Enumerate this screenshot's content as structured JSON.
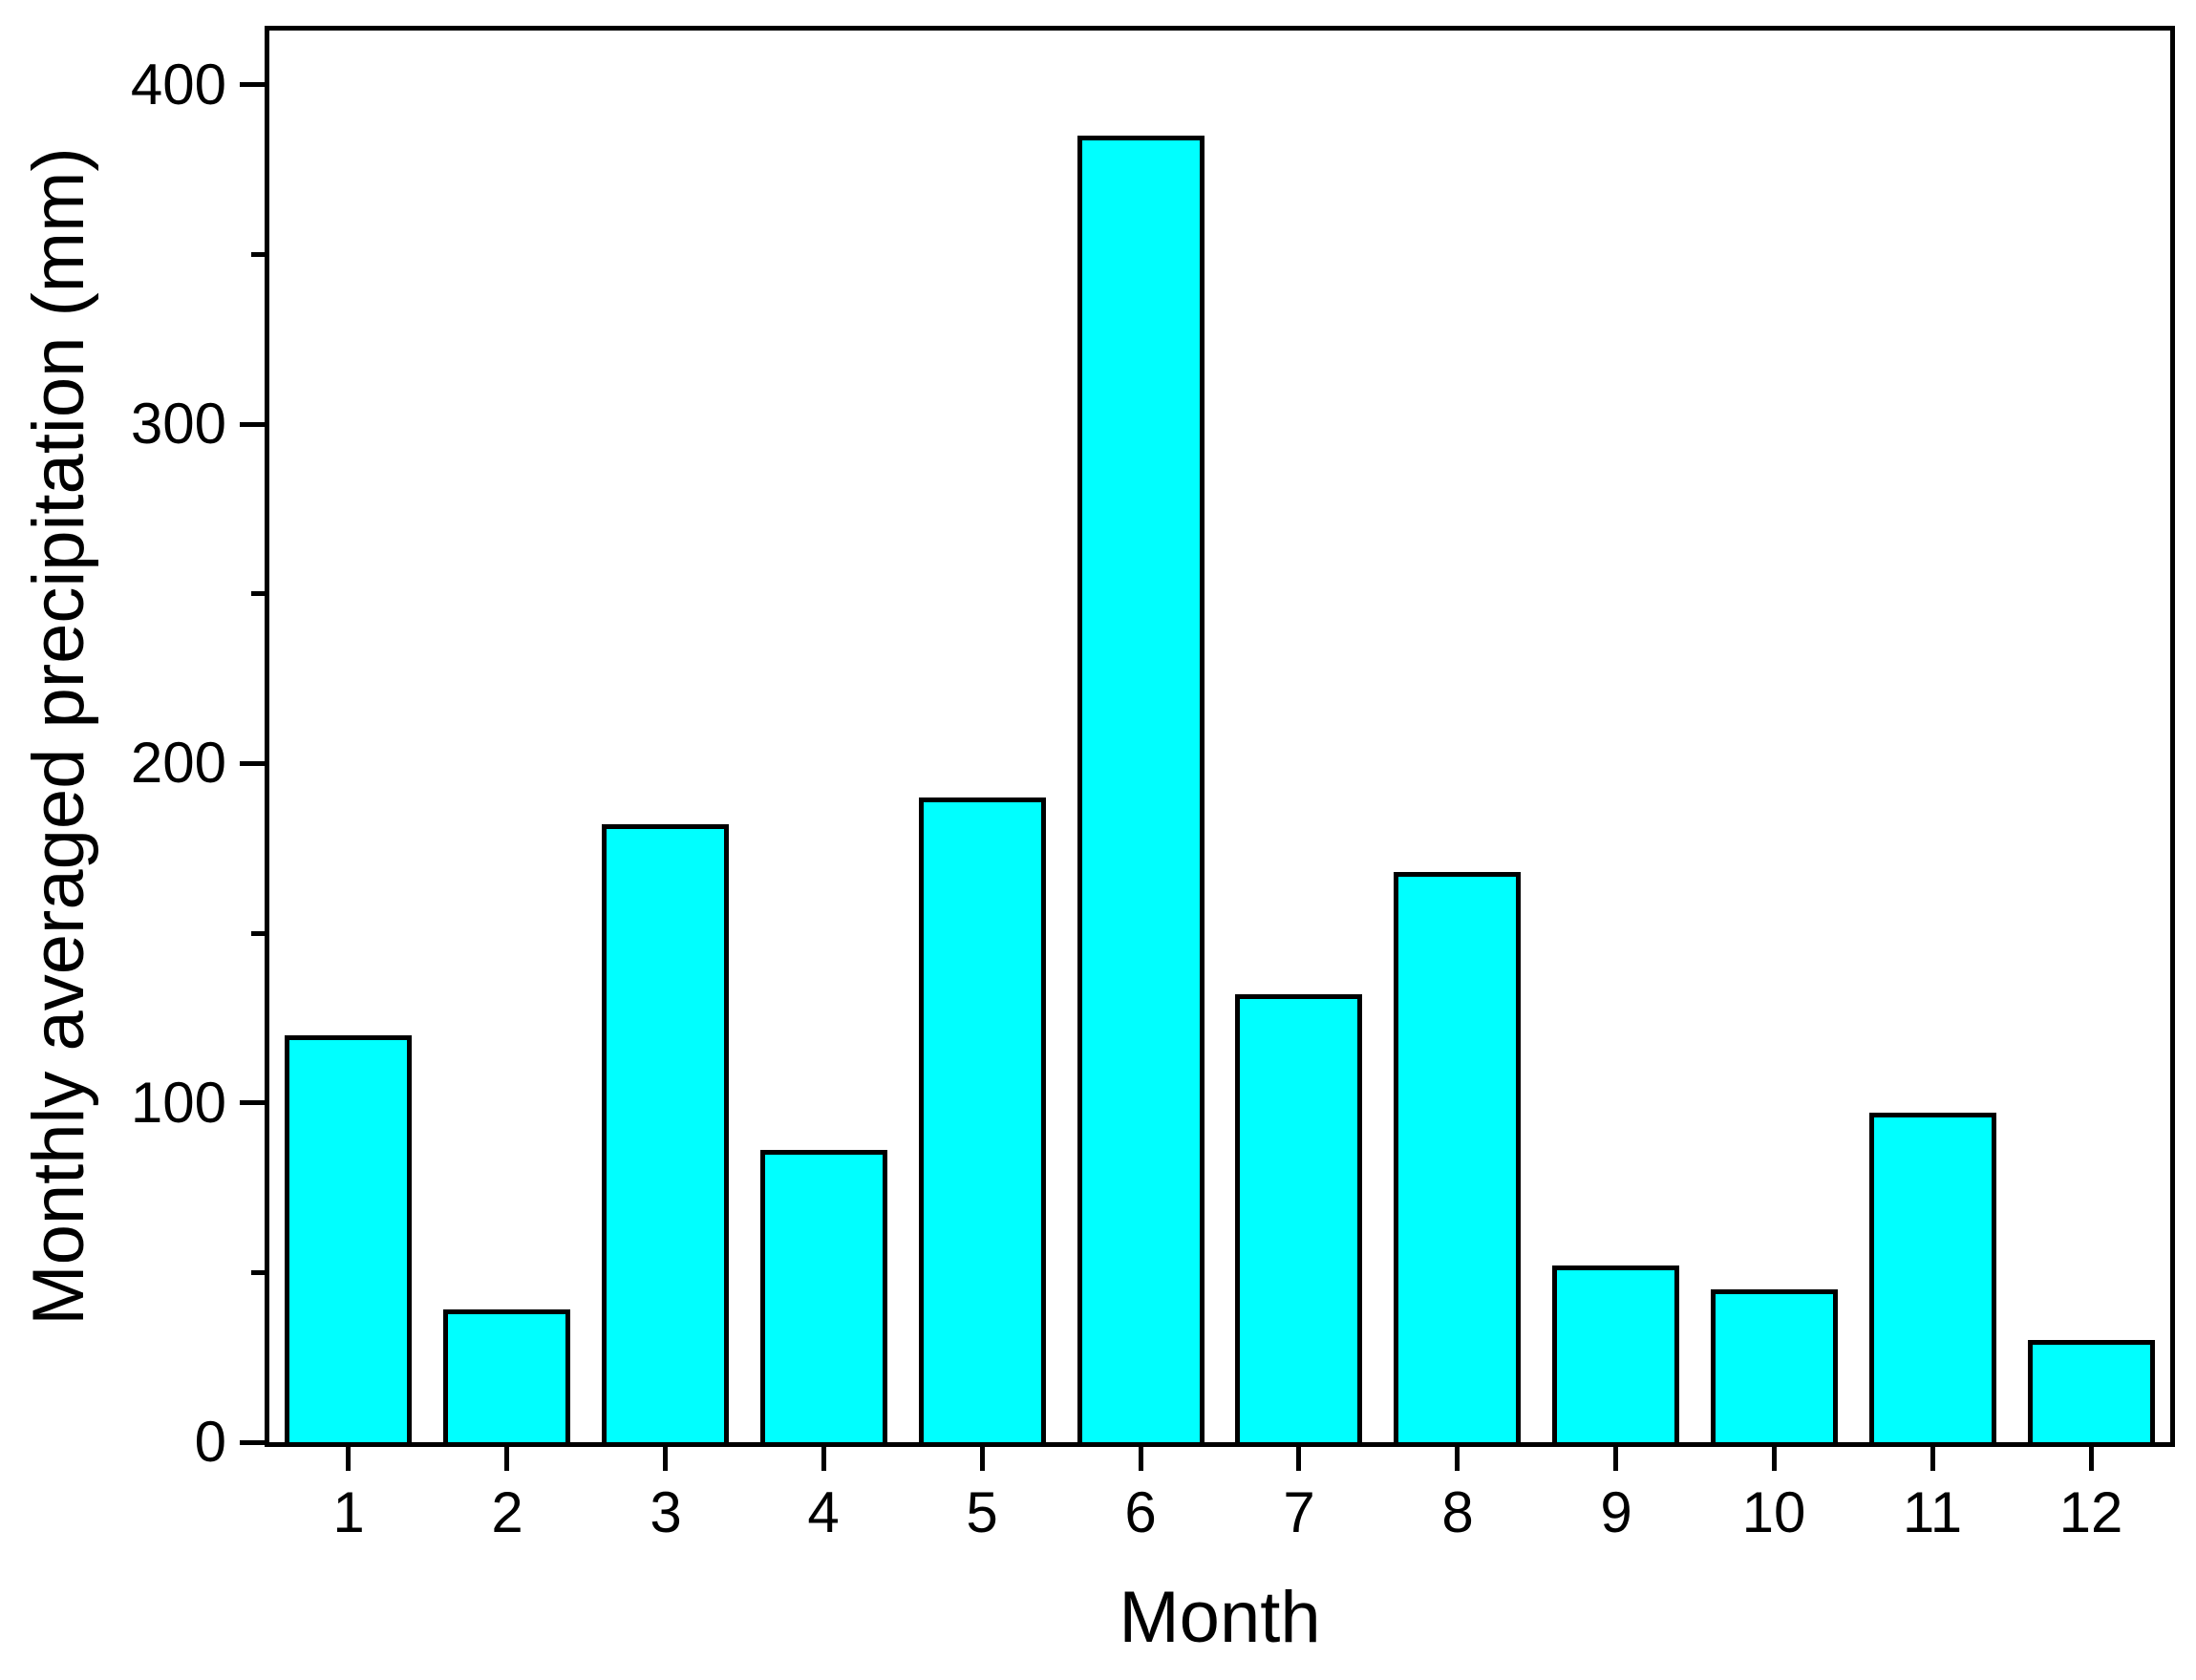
{
  "chart_data": {
    "type": "bar",
    "title": "",
    "xlabel": "Month",
    "ylabel": "Monthly averaged precipitation (mm)",
    "categories": [
      "1",
      "2",
      "3",
      "4",
      "5",
      "6",
      "7",
      "8",
      "9",
      "10",
      "11",
      "12"
    ],
    "values": [
      120,
      39,
      182,
      86,
      190,
      385,
      132,
      168,
      52,
      45,
      97,
      30
    ],
    "series_name": "Monthly averaged precipitation",
    "ylim": [
      0,
      416
    ],
    "yticks": [
      0,
      100,
      200,
      300,
      400
    ],
    "y_minor_step": 50,
    "grid": false,
    "legend": null,
    "bar_color": "#00FFFF",
    "bar_border_color": "#000000",
    "axis_color": "#000000",
    "background_color": "#FFFFFF"
  }
}
